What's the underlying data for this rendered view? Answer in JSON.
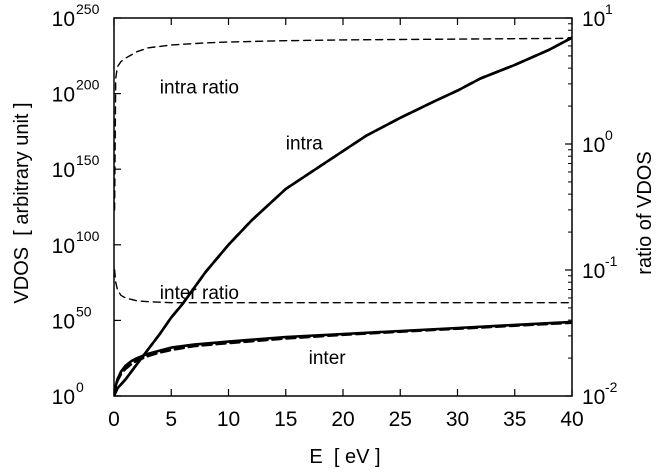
{
  "chart_data": {
    "type": "line",
    "xlabel": "E  [ eV ]",
    "ylabel": "VDOS  [ arbitrary unit ]",
    "y2label": "ratio of VDOS",
    "xlim": [
      0,
      40
    ],
    "ylim": [
      0,
      250
    ],
    "y_scale_note": "left axis shows log10 of VDOS: 10^0 .. 10^250",
    "y2lim": [
      0.01,
      10
    ],
    "y2_scale": "log",
    "grid": false,
    "legend": "none",
    "x_ticks": [
      0,
      5,
      10,
      15,
      20,
      25,
      30,
      35,
      40
    ],
    "x_tick_labels": [
      "0",
      "5",
      "10",
      "15",
      "20",
      "25",
      "30",
      "35",
      "40"
    ],
    "y_ticks": [
      0,
      50,
      100,
      150,
      200,
      250
    ],
    "y_tick_bases": [
      "10",
      "10",
      "10",
      "10",
      "10",
      "10"
    ],
    "y_tick_exponents": [
      "0",
      "50",
      "100",
      "150",
      "200",
      "250"
    ],
    "y2_ticks": [
      0.01,
      0.1,
      1,
      10
    ],
    "y2_tick_bases": [
      "10",
      "10",
      "10",
      "10"
    ],
    "y2_tick_exponents": [
      "-2",
      "-1",
      "0",
      "1"
    ],
    "series": [
      {
        "name": "intra",
        "axis": "left",
        "style": "solid",
        "x": [
          0,
          0.3,
          1,
          2,
          3,
          4,
          5,
          6,
          8,
          10,
          12,
          15,
          18,
          20,
          22,
          25,
          28,
          30,
          32,
          35,
          38,
          40
        ],
        "y": [
          0,
          5,
          11,
          21,
          31,
          41,
          52,
          61,
          82,
          100,
          116,
          137,
          152,
          162,
          172,
          184,
          195,
          202,
          210,
          219,
          229,
          237
        ]
      },
      {
        "name": "inter",
        "axis": "left",
        "style": "solid",
        "x": [
          0,
          0.1,
          0.3,
          0.6,
          1,
          1.5,
          2,
          3,
          4,
          5,
          7,
          10,
          15,
          20,
          25,
          30,
          35,
          40
        ],
        "y": [
          0,
          5,
          11,
          16,
          20,
          23,
          25,
          28,
          30,
          32,
          34,
          36,
          39,
          41,
          43,
          45,
          47,
          49
        ]
      },
      {
        "name": "intra ratio",
        "axis": "right",
        "style": "dashed",
        "x": [
          0.05,
          0.15,
          0.3,
          0.6,
          1,
          2,
          3,
          5,
          8,
          10,
          15,
          20,
          25,
          30,
          35,
          40
        ],
        "y": [
          0.3,
          3.3,
          4.1,
          4.5,
          4.8,
          5.4,
          5.8,
          6.1,
          6.35,
          6.45,
          6.6,
          6.7,
          6.75,
          6.8,
          6.85,
          6.9
        ]
      },
      {
        "name": "inter ratio",
        "axis": "right",
        "style": "dashed",
        "x": [
          0.05,
          0.15,
          0.3,
          0.6,
          1,
          2,
          3,
          5,
          8,
          10,
          15,
          20,
          25,
          30,
          35,
          40
        ],
        "y": [
          0.1,
          0.08,
          0.07,
          0.063,
          0.06,
          0.057,
          0.056,
          0.055,
          0.055,
          0.055,
          0.055,
          0.055,
          0.055,
          0.055,
          0.055,
          0.055
        ]
      },
      {
        "name": "intra",
        "axis": "left",
        "style": "dashed",
        "x": [
          0,
          0.3,
          1,
          2,
          3,
          4,
          5,
          6,
          8,
          10,
          12,
          15,
          18,
          20,
          22,
          25,
          28,
          30,
          32,
          35,
          38,
          40
        ],
        "y": [
          0,
          5,
          11,
          21,
          31,
          41,
          52,
          61,
          82,
          100,
          116,
          137,
          152,
          162,
          172,
          184,
          195,
          202,
          210,
          219,
          229,
          237
        ]
      },
      {
        "name": "inter",
        "axis": "left",
        "style": "dashed",
        "x": [
          0,
          0.1,
          0.3,
          0.6,
          1,
          1.5,
          2,
          3,
          4,
          5,
          7,
          10,
          15,
          20,
          25,
          30,
          35,
          40
        ],
        "y": [
          0,
          4,
          10,
          14.5,
          18,
          21,
          23.5,
          26.5,
          28.8,
          30.5,
          33,
          35,
          38,
          40.5,
          42.5,
          44.5,
          46.5,
          48.5
        ]
      }
    ],
    "annotations": [
      {
        "text": "intra ratio",
        "x": 4.0,
        "y": 200
      },
      {
        "text": "intra",
        "x": 15.0,
        "y": 163
      },
      {
        "text": "inter ratio",
        "x": 4.0,
        "y": 64
      },
      {
        "text": "inter",
        "x": 17.0,
        "y": 21
      }
    ]
  }
}
